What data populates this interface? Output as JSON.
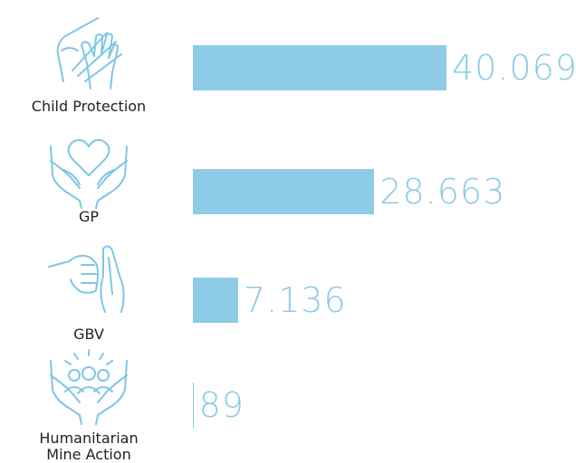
{
  "chart_data": {
    "type": "bar",
    "orientation": "horizontal",
    "categories": [
      "Child Protection",
      "GP",
      "GBV",
      "Humanitarian Mine Action"
    ],
    "values": [
      40069,
      28663,
      7136,
      89
    ],
    "value_labels": [
      "40.069",
      "28.663",
      "7.136",
      "89"
    ],
    "color": "#8dcbe6"
  }
}
